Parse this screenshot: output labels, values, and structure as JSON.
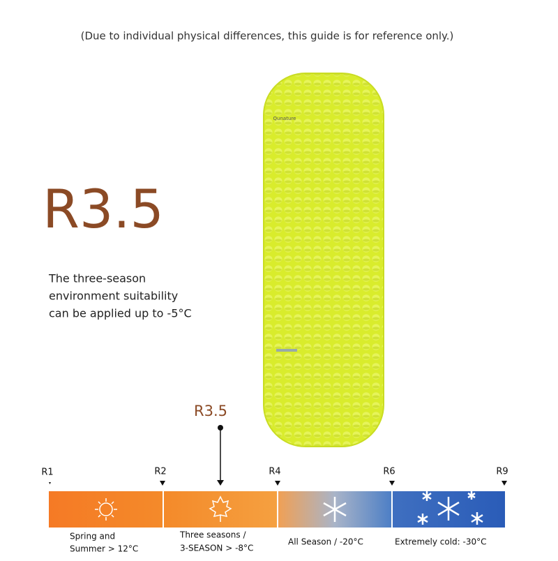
{
  "header": {
    "note": "(Due to individual physical differences, this guide is for reference only.)"
  },
  "rating": {
    "value": "R3.5",
    "description": [
      "The three-season",
      "environment suitability",
      "can be applied up to -5°C"
    ]
  },
  "product": {
    "brand": "Qunature"
  },
  "scale": {
    "pointer_label": "R3.5",
    "markers": [
      "R1",
      "R2",
      "R4",
      "R6",
      "R9"
    ],
    "segments": [
      {
        "caption": [
          "Spring and",
          "Summer > 12°C"
        ]
      },
      {
        "caption": [
          "Three seasons /",
          "3-SEASON > -8°C"
        ]
      },
      {
        "caption": [
          "All Season / -20°C"
        ]
      },
      {
        "caption": [
          "Extremely cold: -30°C"
        ]
      }
    ]
  }
}
